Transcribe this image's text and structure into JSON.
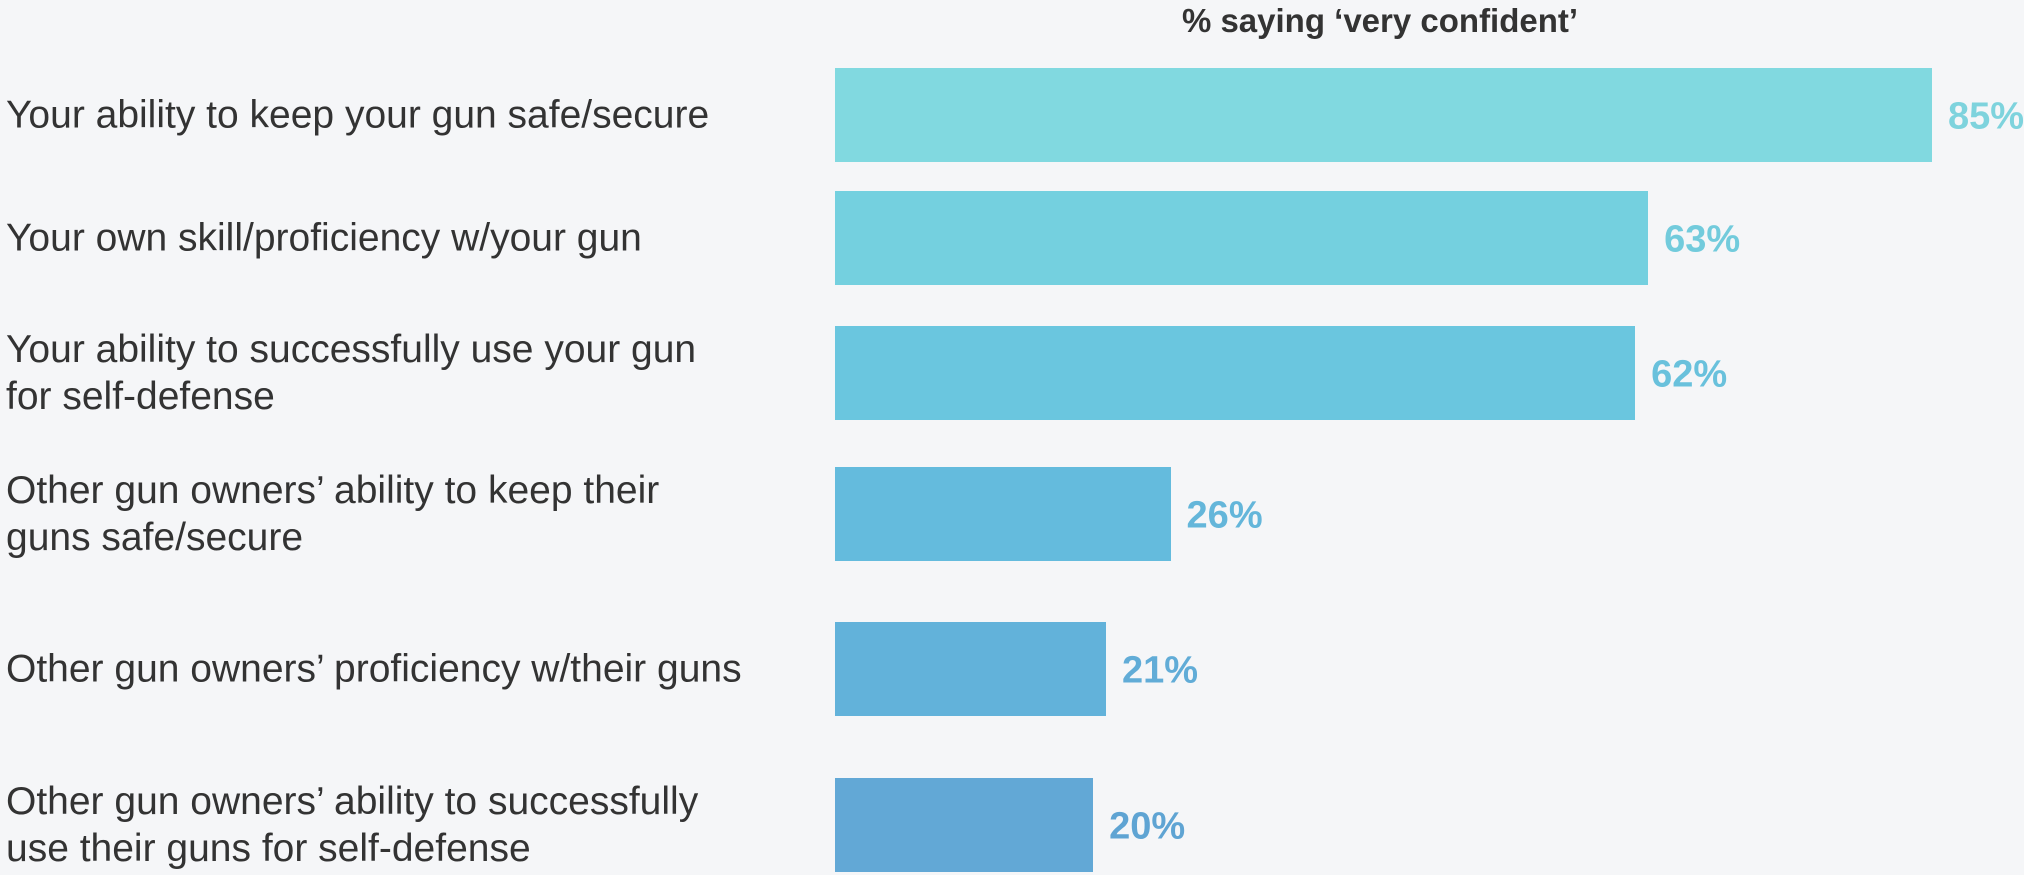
{
  "chart_data": {
    "type": "bar",
    "orientation": "horizontal",
    "title": "% saying ‘very confident’",
    "categories": [
      "Your ability to keep your gun safe/secure",
      "Your own skill/proficiency w/your gun",
      "Your ability to successfully use your gun for self-defense",
      "Other gun owners’ ability to keep their guns safe/secure",
      "Other gun owners’ proficiency w/their guns",
      "Other gun owners’ ability to successfully use their guns for self-defense"
    ],
    "values": [
      85,
      63,
      62,
      26,
      21,
      20
    ],
    "value_labels": [
      "85%",
      "63%",
      "62%",
      "26%",
      "21%",
      "20%"
    ],
    "bar_colors": [
      "#81d9e0",
      "#74d0df",
      "#6ac6df",
      "#64bbdd",
      "#62b2da",
      "#62a8d6"
    ],
    "label_colors": [
      "#7ed3dd",
      "#72cbdc",
      "#69c1dc",
      "#64b6da",
      "#61acd7",
      "#5fa4d3"
    ],
    "xlim": [
      0,
      85
    ],
    "grid": false,
    "legend": "none"
  }
}
